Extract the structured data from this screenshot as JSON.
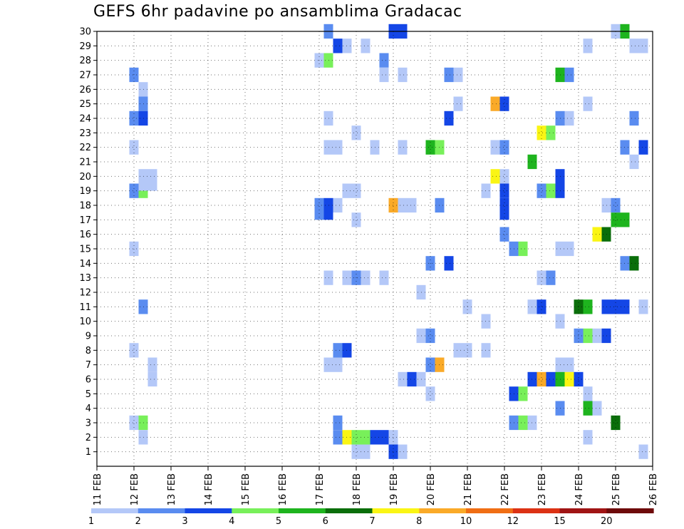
{
  "title": "GEFS 6hr padavine po ansamblima Gradacac",
  "colors": {
    "frame": "#000000",
    "grid": "#000000",
    "bins": [
      "#b4c8f8",
      "#5a8cf0",
      "#1446e6",
      "#78f05a",
      "#1eb41e",
      "#0a6e0a",
      "#faf514",
      "#faaa28",
      "#f06e14",
      "#dc3214",
      "#a01414",
      "#6e0a0a"
    ]
  },
  "chart_data": {
    "type": "heatmap",
    "title": "GEFS 6hr padavine po ansamblima Gradacac",
    "x_tick_labels": [
      "11 FEB",
      "12 FEB",
      "13 FEB",
      "14 FEB",
      "15 FEB",
      "16 FEB",
      "17 FEB",
      "18 FEB",
      "19 FEB",
      "20 FEB",
      "21 FEB",
      "22 FEB",
      "23 FEB",
      "24 FEB",
      "25 FEB",
      "26 FEB"
    ],
    "y_tick_labels": [
      "1",
      "2",
      "3",
      "4",
      "5",
      "6",
      "7",
      "8",
      "9",
      "10",
      "11",
      "12",
      "13",
      "14",
      "15",
      "16",
      "17",
      "18",
      "19",
      "20",
      "21",
      "22",
      "23",
      "24",
      "25",
      "26",
      "27",
      "28",
      "29",
      "30"
    ],
    "x_range_days": [
      11,
      26
    ],
    "y_range": [
      0,
      30
    ],
    "grid": "dotted",
    "legend_placement": "bottom",
    "legend_labels": [
      "1",
      "2",
      "3",
      "4",
      "5",
      "6",
      "7",
      "8",
      "10",
      "12",
      "15",
      "20"
    ],
    "x_step_hours": 6,
    "cell_value_key": "cells are [day, member, color_bin]; color_bin indexes legend bins (1 = 1–2, 2 = 2–3, ... 12 = >20)",
    "cells": [
      [
        17.25,
        30,
        2
      ],
      [
        19.0,
        30,
        3
      ],
      [
        19.25,
        30,
        3
      ],
      [
        25.0,
        30,
        1
      ],
      [
        25.25,
        30,
        5
      ],
      [
        17.5,
        29,
        3
      ],
      [
        17.75,
        29,
        1
      ],
      [
        18.25,
        29,
        1
      ],
      [
        24.25,
        29,
        1
      ],
      [
        25.5,
        29,
        1
      ],
      [
        25.75,
        29,
        1
      ],
      [
        17.0,
        28,
        1
      ],
      [
        17.25,
        28,
        4
      ],
      [
        18.75,
        28,
        2
      ],
      [
        12.0,
        27,
        2
      ],
      [
        18.75,
        27,
        1
      ],
      [
        19.25,
        27,
        1
      ],
      [
        20.5,
        27,
        2
      ],
      [
        20.75,
        27,
        1
      ],
      [
        23.5,
        27,
        5
      ],
      [
        23.75,
        27,
        2
      ],
      [
        12.25,
        26,
        1
      ],
      [
        12.25,
        25,
        2
      ],
      [
        20.75,
        25,
        1
      ],
      [
        21.75,
        25,
        8
      ],
      [
        22.0,
        25,
        3
      ],
      [
        24.25,
        25,
        1
      ],
      [
        12.0,
        24,
        2
      ],
      [
        12.25,
        24,
        3
      ],
      [
        17.25,
        24,
        1
      ],
      [
        20.5,
        24,
        3
      ],
      [
        23.5,
        24,
        2
      ],
      [
        23.75,
        24,
        1
      ],
      [
        25.5,
        24,
        2
      ],
      [
        23.0,
        23,
        7
      ],
      [
        23.25,
        23,
        4
      ],
      [
        18.0,
        23,
        1
      ],
      [
        12.0,
        22,
        1
      ],
      [
        17.25,
        22,
        1
      ],
      [
        17.5,
        22,
        1
      ],
      [
        18.5,
        22,
        1
      ],
      [
        19.25,
        22,
        1
      ],
      [
        20.0,
        22,
        5
      ],
      [
        20.25,
        22,
        4
      ],
      [
        21.75,
        22,
        1
      ],
      [
        22.0,
        22,
        2
      ],
      [
        25.25,
        22,
        2
      ],
      [
        25.75,
        22,
        3
      ],
      [
        22.75,
        21,
        5
      ],
      [
        25.5,
        21,
        1
      ],
      [
        12.25,
        20,
        1
      ],
      [
        12.5,
        20,
        1
      ],
      [
        21.75,
        20,
        7
      ],
      [
        22.0,
        20,
        1
      ],
      [
        23.5,
        20,
        3
      ],
      [
        12.0,
        19,
        2
      ],
      [
        12.25,
        19,
        4
      ],
      [
        12.25,
        19.5,
        1
      ],
      [
        12.5,
        19.5,
        1
      ],
      [
        17.75,
        19,
        1
      ],
      [
        18.0,
        19,
        1
      ],
      [
        21.5,
        19,
        1
      ],
      [
        22.0,
        19,
        3
      ],
      [
        23.0,
        19,
        2
      ],
      [
        23.25,
        19,
        4
      ],
      [
        23.5,
        19,
        3
      ],
      [
        17.0,
        18,
        2
      ],
      [
        17.25,
        18,
        3
      ],
      [
        17.5,
        18,
        1
      ],
      [
        19.0,
        18,
        8
      ],
      [
        19.25,
        18,
        1
      ],
      [
        19.5,
        18,
        1
      ],
      [
        20.25,
        18,
        2
      ],
      [
        22.0,
        18,
        3
      ],
      [
        24.75,
        18,
        1
      ],
      [
        25.0,
        18,
        2
      ],
      [
        17.0,
        17.5,
        2
      ],
      [
        17.25,
        17.5,
        3
      ],
      [
        22.0,
        17.5,
        3
      ],
      [
        18.0,
        17,
        1
      ],
      [
        25.0,
        17,
        5
      ],
      [
        25.25,
        17,
        5
      ],
      [
        22.0,
        16,
        2
      ],
      [
        24.5,
        16,
        7
      ],
      [
        24.75,
        16,
        6
      ],
      [
        12.0,
        15,
        1
      ],
      [
        22.25,
        15,
        2
      ],
      [
        22.5,
        15,
        4
      ],
      [
        23.5,
        15,
        1
      ],
      [
        23.75,
        15,
        1
      ],
      [
        20.0,
        14,
        2
      ],
      [
        20.5,
        14,
        3
      ],
      [
        25.25,
        14,
        2
      ],
      [
        25.5,
        14,
        6
      ],
      [
        17.25,
        13,
        1
      ],
      [
        17.75,
        13,
        1
      ],
      [
        18.0,
        13,
        2
      ],
      [
        18.25,
        13,
        1
      ],
      [
        18.75,
        13,
        1
      ],
      [
        23.0,
        13,
        1
      ],
      [
        23.25,
        13,
        2
      ],
      [
        19.75,
        12,
        1
      ],
      [
        12.25,
        11,
        2
      ],
      [
        21.0,
        11,
        1
      ],
      [
        22.75,
        11,
        1
      ],
      [
        23.0,
        11,
        3
      ],
      [
        24.0,
        11,
        6
      ],
      [
        24.25,
        11,
        5
      ],
      [
        24.75,
        11,
        3
      ],
      [
        25.0,
        11,
        3
      ],
      [
        25.25,
        11,
        3
      ],
      [
        25.75,
        11,
        1
      ],
      [
        21.5,
        10,
        1
      ],
      [
        23.5,
        10,
        1
      ],
      [
        19.75,
        9,
        1
      ],
      [
        20.0,
        9,
        2
      ],
      [
        24.0,
        9,
        2
      ],
      [
        24.25,
        9,
        4
      ],
      [
        24.5,
        9,
        1
      ],
      [
        24.75,
        9,
        3
      ],
      [
        12.0,
        8,
        1
      ],
      [
        17.5,
        8,
        2
      ],
      [
        17.75,
        8,
        3
      ],
      [
        20.75,
        8,
        1
      ],
      [
        21.0,
        8,
        1
      ],
      [
        21.5,
        8,
        1
      ],
      [
        12.5,
        7,
        1
      ],
      [
        17.25,
        7,
        1
      ],
      [
        17.5,
        7,
        1
      ],
      [
        20.0,
        7,
        2
      ],
      [
        20.25,
        7,
        8
      ],
      [
        23.5,
        7,
        1
      ],
      [
        23.75,
        7,
        1
      ],
      [
        12.5,
        6,
        1
      ],
      [
        19.25,
        6,
        1
      ],
      [
        19.5,
        6,
        3
      ],
      [
        19.75,
        6,
        1
      ],
      [
        22.75,
        6,
        3
      ],
      [
        23.0,
        6,
        8
      ],
      [
        23.25,
        6,
        3
      ],
      [
        23.5,
        6,
        5
      ],
      [
        23.75,
        6,
        7
      ],
      [
        24.0,
        6,
        3
      ],
      [
        20.0,
        5,
        1
      ],
      [
        22.25,
        5,
        3
      ],
      [
        22.5,
        5,
        4
      ],
      [
        24.25,
        5,
        1
      ],
      [
        23.5,
        4,
        2
      ],
      [
        24.25,
        4,
        5
      ],
      [
        24.5,
        4,
        1
      ],
      [
        12.0,
        3,
        1
      ],
      [
        12.25,
        3,
        4
      ],
      [
        17.5,
        3,
        2
      ],
      [
        22.25,
        3,
        2
      ],
      [
        22.5,
        3,
        4
      ],
      [
        22.75,
        3,
        1
      ],
      [
        25.0,
        3,
        6
      ],
      [
        17.5,
        2,
        2
      ],
      [
        17.75,
        2,
        7
      ],
      [
        18.0,
        2,
        4
      ],
      [
        18.25,
        2,
        4
      ],
      [
        18.5,
        2,
        3
      ],
      [
        18.75,
        2,
        3
      ],
      [
        19.0,
        2,
        1
      ],
      [
        12.25,
        2,
        1
      ],
      [
        24.25,
        2,
        1
      ],
      [
        18.0,
        1,
        1
      ],
      [
        18.25,
        1,
        1
      ],
      [
        19.0,
        1,
        3
      ],
      [
        19.25,
        1,
        1
      ],
      [
        25.75,
        1,
        1
      ]
    ]
  }
}
